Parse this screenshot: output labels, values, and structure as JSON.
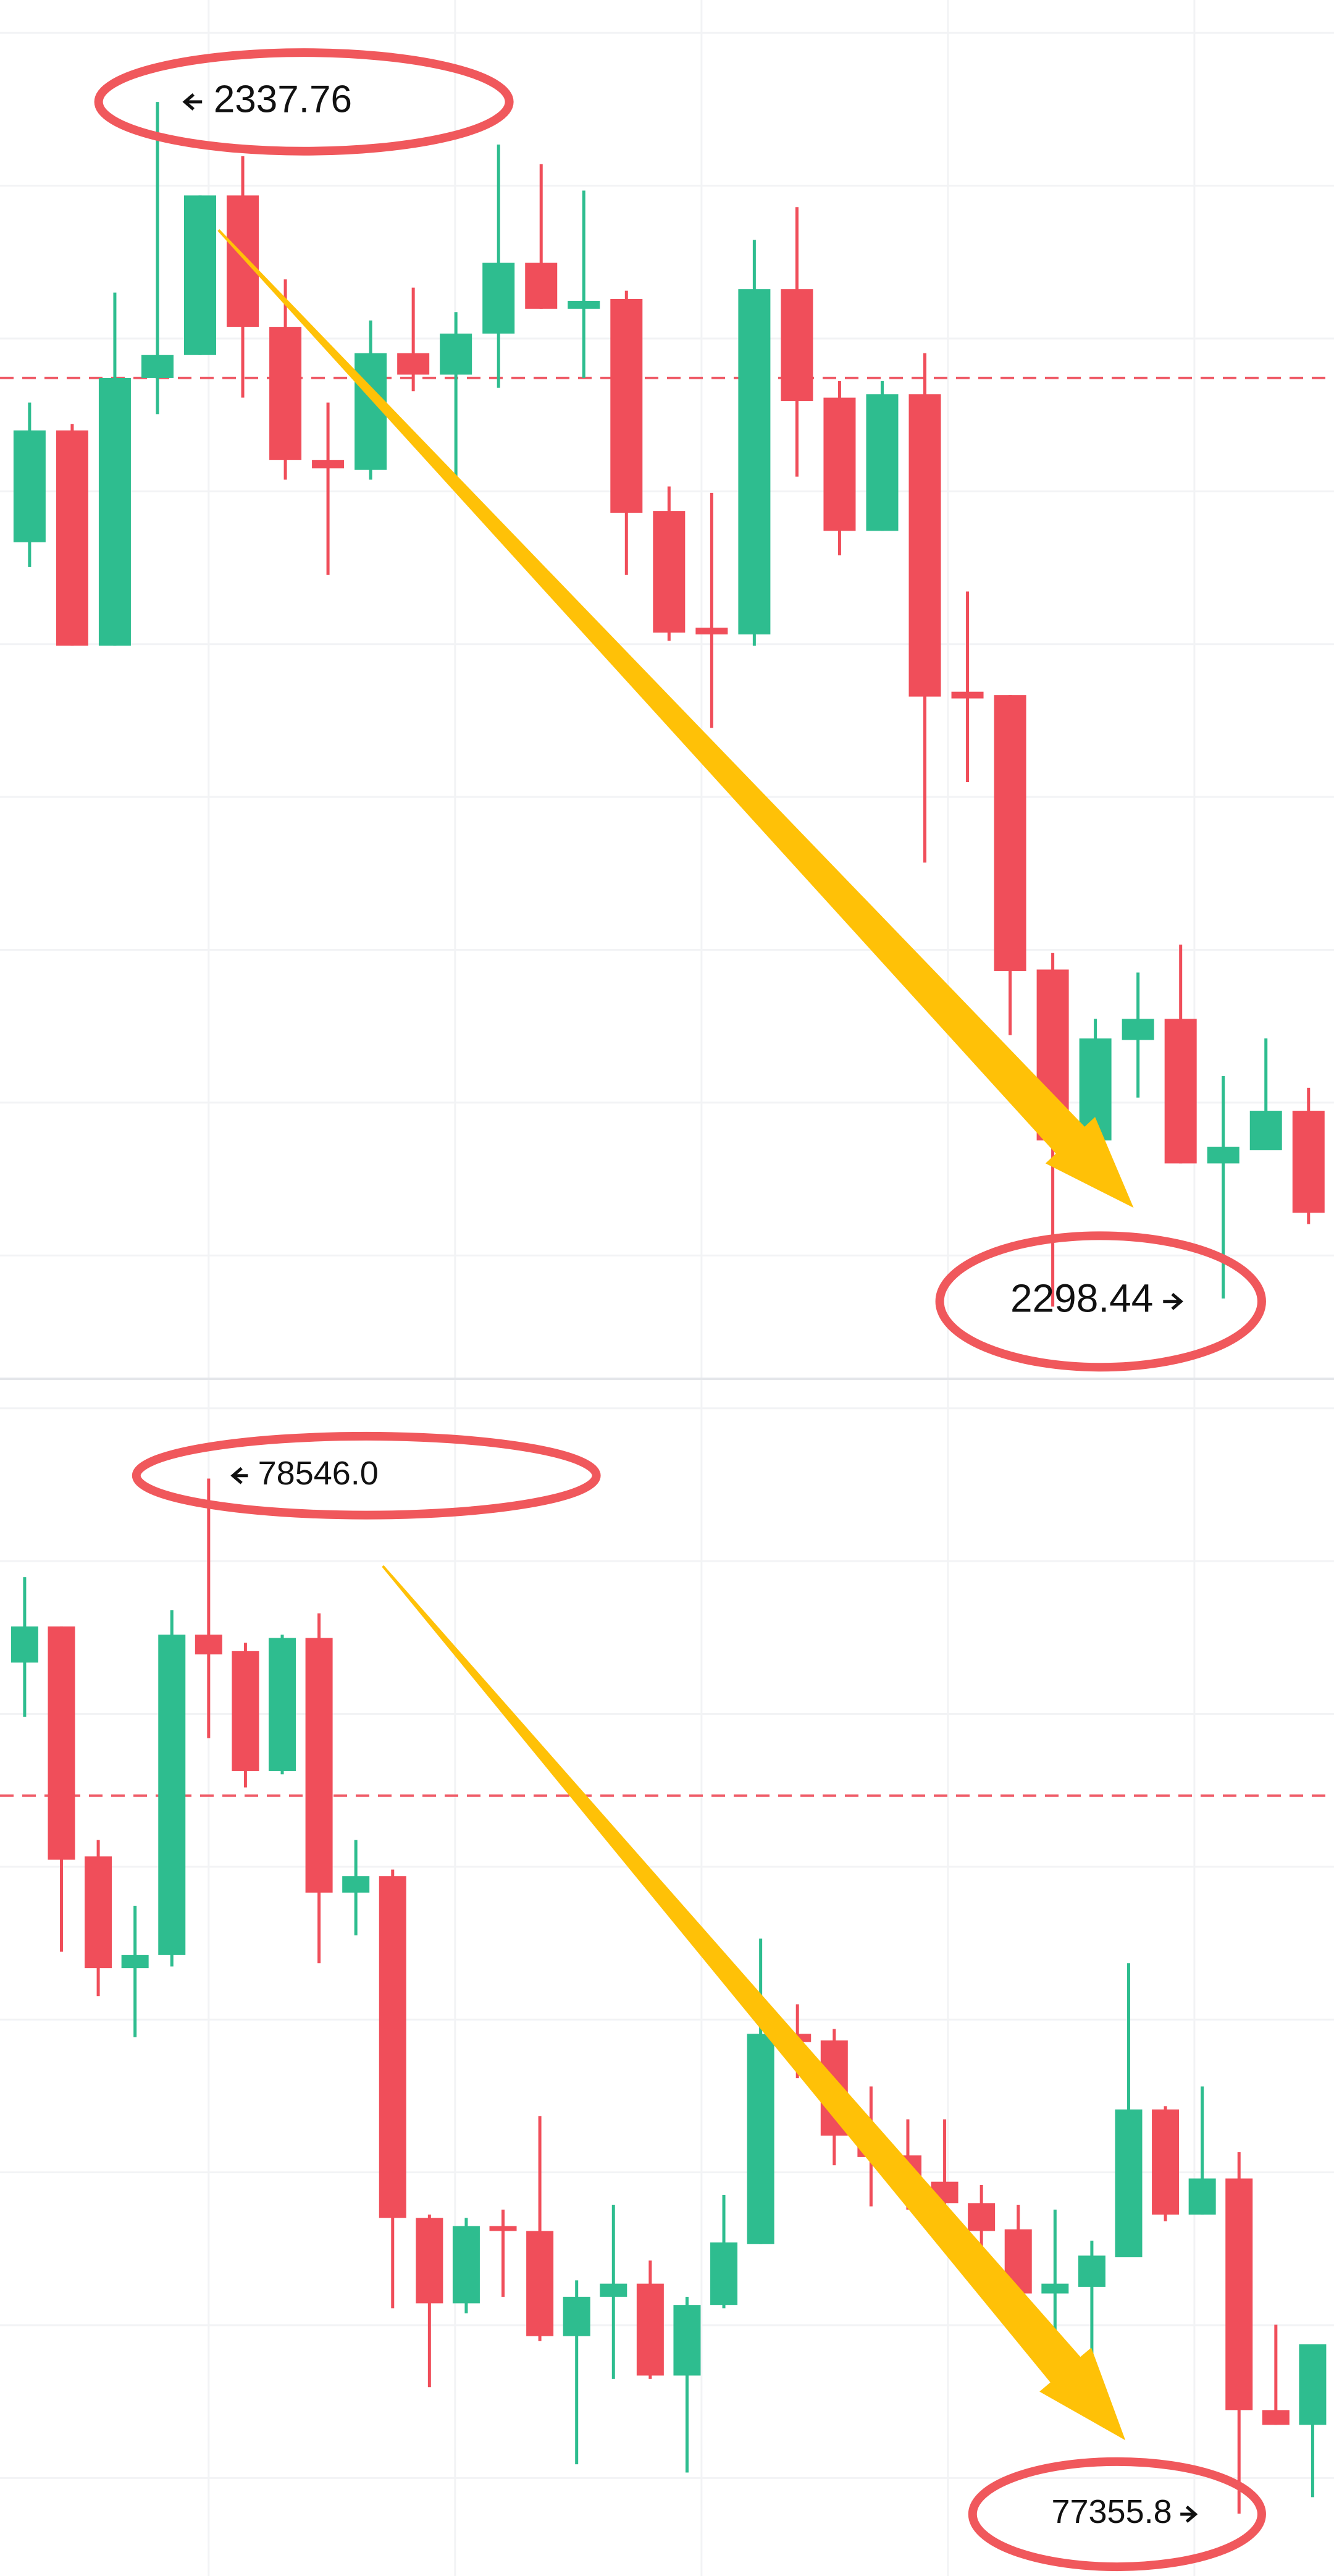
{
  "chart_data": [
    {
      "type": "candlestick",
      "up_color": "#2ebd8f",
      "down_color": "#f04e5a",
      "ylim": [
        2296.14,
        2341.09
      ],
      "price_line": 2328.75,
      "high_label": "2337.76",
      "low_label": "2298.44",
      "open": [
        2323.39,
        2327.04,
        2320.01,
        2328.75,
        2329.5,
        2334.71,
        2330.42,
        2326.07,
        2325.75,
        2329.56,
        2328.86,
        2330.2,
        2332.51,
        2331.01,
        2331.33,
        2324.41,
        2320.6,
        2320.38,
        2331.65,
        2328.11,
        2323.76,
        2328.22,
        2318.51,
        2318.4,
        2309.44,
        2303.86,
        2307.14,
        2307.83,
        2303.11,
        2303.54,
        2304.83
      ],
      "high": [
        2327.95,
        2327.25,
        2331.54,
        2337.76,
        2334.71,
        2335.99,
        2331.97,
        2327.95,
        2330.63,
        2331.7,
        2330.9,
        2336.37,
        2335.73,
        2334.87,
        2331.6,
        2325.21,
        2325.0,
        2333.26,
        2334.33,
        2328.65,
        2328.65,
        2329.56,
        2321.78,
        2318.4,
        2309.98,
        2307.83,
        2309.34,
        2310.25,
        2305.96,
        2307.19,
        2305.58
      ],
      "low": [
        2322.58,
        2320.01,
        2320.01,
        2327.57,
        2329.5,
        2328.11,
        2325.43,
        2322.32,
        2325.43,
        2328.32,
        2325.53,
        2328.43,
        2331.01,
        2328.75,
        2322.32,
        2320.17,
        2317.33,
        2320.01,
        2325.53,
        2322.96,
        2323.76,
        2312.93,
        2315.56,
        2307.3,
        2298.44,
        2303.86,
        2305.26,
        2303.11,
        2298.7,
        2303.54,
        2301.13
      ],
      "close": [
        2327.04,
        2320.01,
        2328.75,
        2329.5,
        2334.71,
        2330.42,
        2326.07,
        2325.8,
        2329.56,
        2328.86,
        2330.2,
        2332.51,
        2331.01,
        2331.27,
        2324.35,
        2320.44,
        2320.38,
        2331.65,
        2328.0,
        2323.76,
        2328.22,
        2318.35,
        2318.29,
        2309.39,
        2303.86,
        2307.19,
        2307.83,
        2303.11,
        2303.65,
        2304.83,
        2301.5
      ]
    },
    {
      "type": "candlestick",
      "up_color": "#2ebd8f",
      "down_color": "#f04e5a",
      "ylim": [
        77284.1,
        78659.3
      ],
      "price_line": 78181.4,
      "high_label": "78546.0",
      "low_label": "77355.8",
      "open": [
        78334.4,
        78376.0,
        78111.5,
        77983.0,
        77998.1,
        78366.5,
        78347.6,
        78209.7,
        78362.7,
        78069.9,
        78088.8,
        77695.9,
        77597.7,
        77686.5,
        77680.8,
        77559.9,
        77605.2,
        77620.3,
        77514.6,
        77595.8,
        77665.7,
        77907.5,
        77899.9,
        77790.4,
        77767.7,
        77737.5,
        77712.9,
        77682.7,
        77609.0,
        77616.6,
        77650.6,
        77820.6,
        77699.7,
        77741.2,
        77474.9,
        77457.9
      ],
      "high": [
        78432.6,
        78376.0,
        78130.4,
        78054.8,
        78394.8,
        78546.0,
        78357.1,
        78366.5,
        78391.1,
        78130.4,
        78096.4,
        77699.7,
        77695.9,
        77705.4,
        77813.0,
        77624.1,
        77711.0,
        77646.8,
        77605.2,
        77722.4,
        78017.0,
        77941.5,
        77913.1,
        77847.0,
        77809.2,
        77809.2,
        77733.7,
        77711.0,
        77705.4,
        77669.5,
        77988.7,
        77824.4,
        77847.0,
        77771.5,
        77573.1,
        77550.5
      ],
      "low": [
        78272.1,
        78001.9,
        77950.9,
        77903.7,
        77984.9,
        78247.5,
        78190.8,
        78205.9,
        77988.7,
        78020.8,
        77592.0,
        77501.3,
        77586.3,
        77605.2,
        77554.2,
        77412.6,
        77510.8,
        77510.8,
        77403.1,
        77592.0,
        77665.7,
        77856.5,
        77756.4,
        77709.1,
        77705.4,
        77680.8,
        77607.1,
        77603.3,
        77503.2,
        77533.5,
        77650.6,
        77692.1,
        77699.7,
        77355.8,
        77457.9,
        77374.8
      ],
      "close": [
        78376.0,
        78107.7,
        77983.0,
        77998.1,
        78366.5,
        78343.8,
        78209.7,
        78362.7,
        78069.9,
        78088.8,
        77695.9,
        77597.7,
        77686.5,
        77680.8,
        77559.9,
        77605.2,
        77620.3,
        77514.6,
        77595.8,
        77667.6,
        77907.5,
        77898.0,
        77790.4,
        77765.8,
        77737.5,
        77712.9,
        77680.8,
        77609.0,
        77620.3,
        77652.5,
        77820.6,
        77699.7,
        77741.2,
        77474.9,
        77457.9,
        77550.5
      ]
    }
  ]
}
